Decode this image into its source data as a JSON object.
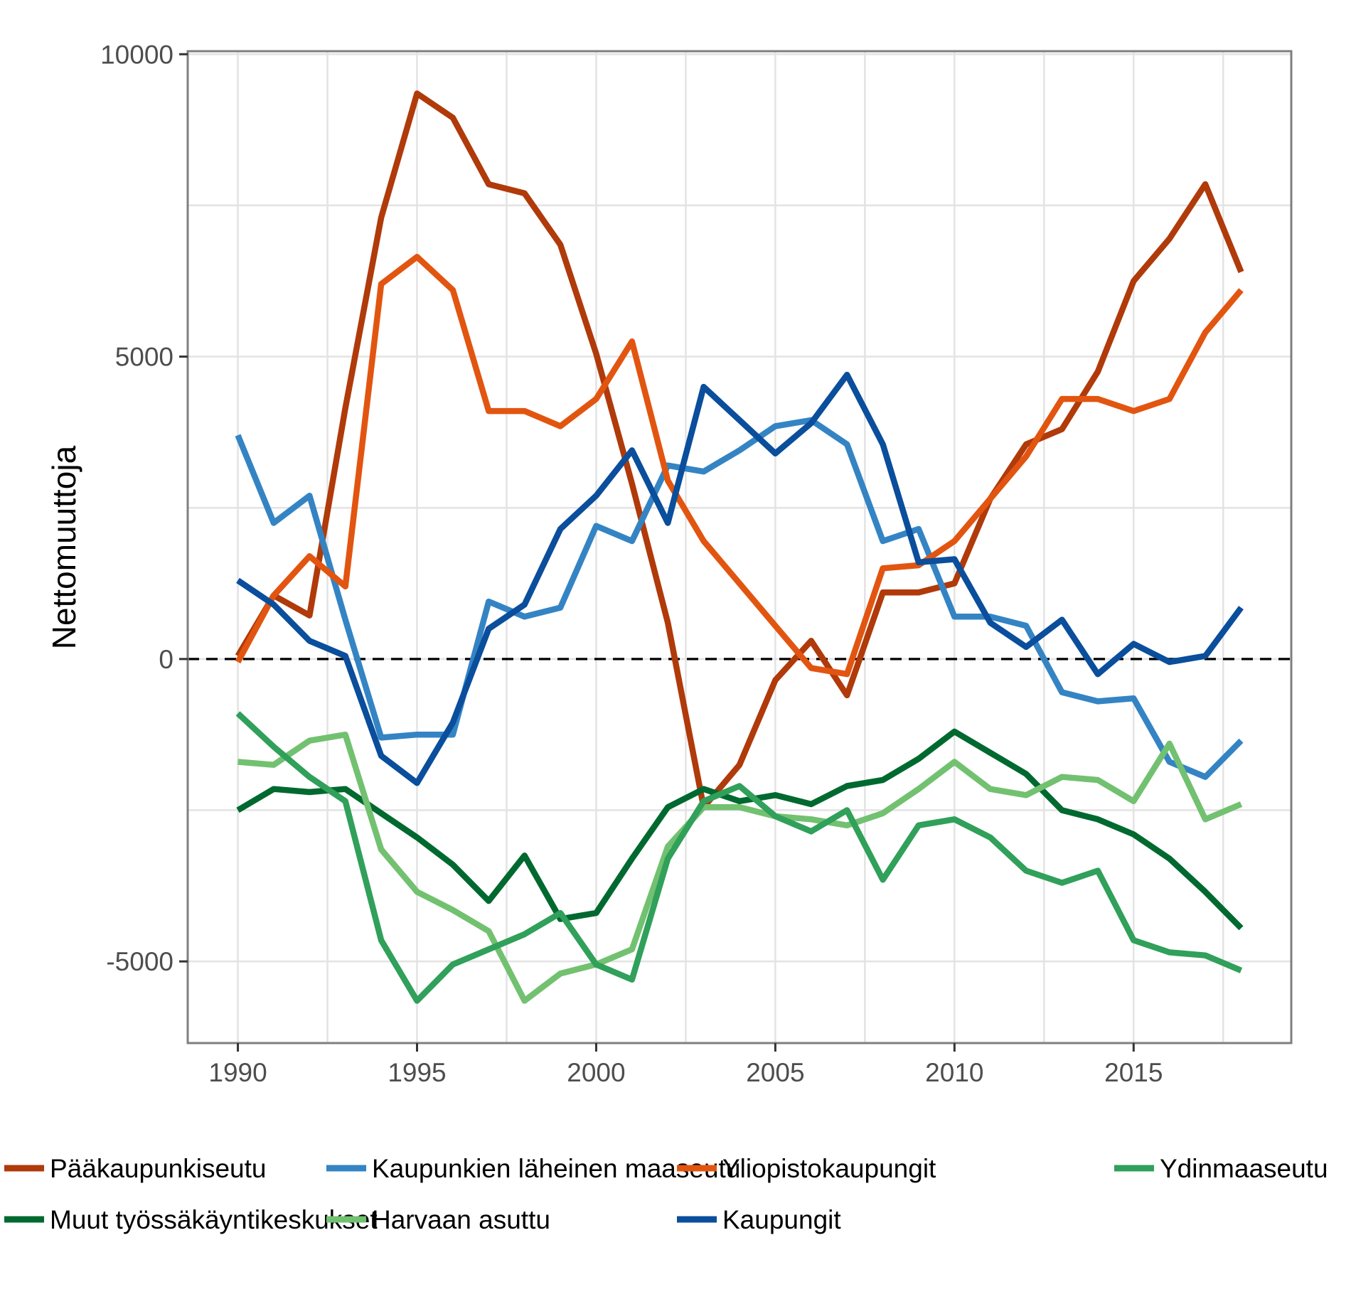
{
  "chart_data": {
    "type": "line",
    "title": "",
    "xlabel": "",
    "ylabel": "Nettomuuttoja",
    "xlim": [
      1988.6,
      2019.4
    ],
    "ylim": [
      -6350,
      10050
    ],
    "x_ticks": [
      1990,
      1995,
      2000,
      2005,
      2010,
      2015
    ],
    "y_ticks": [
      -5000,
      0,
      5000,
      10000
    ],
    "grid": true,
    "zero_line": "dashed",
    "legend_position": "bottom",
    "x": [
      1990,
      1991,
      1992,
      1993,
      1994,
      1995,
      1996,
      1997,
      1998,
      1999,
      2000,
      2001,
      2002,
      2003,
      2004,
      2005,
      2006,
      2007,
      2008,
      2009,
      2010,
      2011,
      2012,
      2013,
      2014,
      2015,
      2016,
      2017,
      2018
    ],
    "series": [
      {
        "name": "Pääkaupunkiseutu",
        "color": "#b03a0a",
        "values": [
          50,
          1050,
          720,
          4150,
          7300,
          9350,
          8950,
          7850,
          7700,
          6850,
          5050,
          2900,
          600,
          -2450,
          -1750,
          -350,
          300,
          -600,
          1100,
          1100,
          1250,
          2650,
          3550,
          3800,
          4750,
          6250,
          6950,
          7850,
          6400
        ]
      },
      {
        "name": "Muut työssäkäyntikeskukset",
        "color": "#00692f",
        "values": [
          -2500,
          -2150,
          -2200,
          -2150,
          -2550,
          -2950,
          -3400,
          -4000,
          -3250,
          -4300,
          -4200,
          -3300,
          -2450,
          -2150,
          -2350,
          -2250,
          -2400,
          -2100,
          -2000,
          -1650,
          -1200,
          -1550,
          -1900,
          -2500,
          -2650,
          -2900,
          -3300,
          -3850,
          -4450
        ]
      },
      {
        "name": "Kaupunkien läheinen maaseutu",
        "color": "#3484c4",
        "values": [
          3700,
          2250,
          2700,
          650,
          -1300,
          -1250,
          -1250,
          950,
          700,
          850,
          2200,
          1950,
          3200,
          3100,
          3450,
          3850,
          3950,
          3550,
          1950,
          2150,
          700,
          700,
          550,
          -550,
          -700,
          -650,
          -1700,
          -1950,
          -1350
        ]
      },
      {
        "name": "Harvaan asuttu",
        "color": "#72c170",
        "values": [
          -1700,
          -1750,
          -1350,
          -1250,
          -3150,
          -3850,
          -4150,
          -4500,
          -5650,
          -5200,
          -5050,
          -4800,
          -3100,
          -2450,
          -2450,
          -2600,
          -2650,
          -2750,
          -2550,
          -2150,
          -1700,
          -2150,
          -2250,
          -1950,
          -2000,
          -2350,
          -1400,
          -2650,
          -2400
        ]
      },
      {
        "name": "Yliopistokaupungit",
        "color": "#e25510",
        "values": [
          -50,
          1050,
          1700,
          1200,
          6200,
          6650,
          6100,
          4100,
          4100,
          3850,
          4300,
          5250,
          2950,
          1950,
          1250,
          550,
          -150,
          -250,
          1500,
          1550,
          1950,
          2650,
          3350,
          4300,
          4300,
          4100,
          4300,
          5400,
          6100
        ]
      },
      {
        "name": "Kaupungit",
        "color": "#0a4e9c",
        "values": [
          1300,
          900,
          300,
          50,
          -1600,
          -2050,
          -1050,
          500,
          900,
          2150,
          2700,
          3450,
          2250,
          4500,
          3950,
          3400,
          3900,
          4700,
          3550,
          1600,
          1650,
          600,
          200,
          650,
          -250,
          250,
          -50,
          50,
          850
        ]
      },
      {
        "name": "Ydinmaaseutu",
        "color": "#30a05a",
        "values": [
          -900,
          -1450,
          -1950,
          -2350,
          -4650,
          -5650,
          -5050,
          -4800,
          -4550,
          -4200,
          -5050,
          -5300,
          -3300,
          -2350,
          -2100,
          -2600,
          -2850,
          -2500,
          -3650,
          -2750,
          -2650,
          -2950,
          -3500,
          -3700,
          -3500,
          -4650,
          -4850,
          -4900,
          -5150
        ]
      }
    ]
  }
}
